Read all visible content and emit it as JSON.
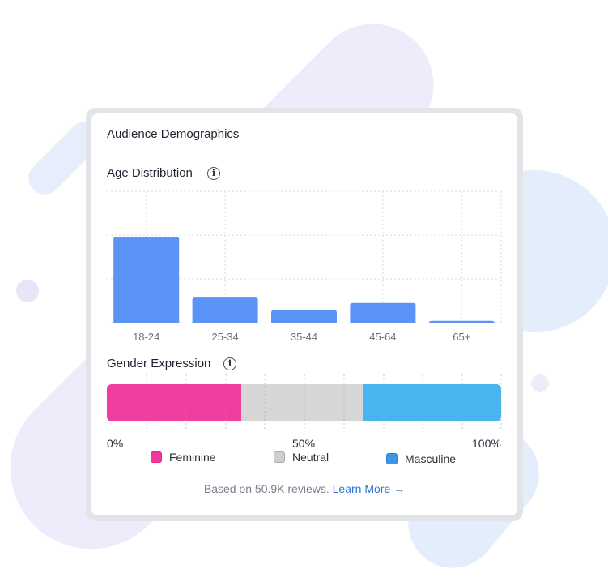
{
  "card": {
    "title": "Audience Demographics"
  },
  "age": {
    "label": "Age Distribution",
    "info_icon": "info-icon"
  },
  "gender": {
    "label": "Gender Expression",
    "info_icon": "info-icon",
    "axis_labels": [
      "0%",
      "50%",
      "100%"
    ],
    "legend": [
      {
        "name": "Feminine",
        "color": "#f0399b",
        "border": "#e62587"
      },
      {
        "name": "Neutral",
        "color": "#cfcfcf",
        "border": "#a9a9a9"
      },
      {
        "name": "Masculine",
        "color": "#3a99e6",
        "border": "#2b7fcf"
      }
    ]
  },
  "footer": {
    "text": "Based on 50.9K reviews.",
    "link": "Learn More →"
  },
  "colors": {
    "age_bar": "#5b93f7",
    "feminine": "#f03ea0",
    "neutral": "#d6d6d6",
    "masculine": "#48b5ef",
    "link": "#2f73d9"
  },
  "chart_data": [
    {
      "type": "bar",
      "title": "Age Distribution",
      "categories": [
        "18-24",
        "25-34",
        "35-44",
        "45-64",
        "65+"
      ],
      "values": [
        48,
        14,
        7,
        11,
        1
      ],
      "ylim": [
        0,
        100
      ],
      "grid": true
    },
    {
      "type": "bar",
      "title": "Gender Expression",
      "stacked": true,
      "orientation": "horizontal",
      "series": [
        {
          "name": "Feminine",
          "values": [
            34
          ]
        },
        {
          "name": "Neutral",
          "values": [
            30.8
          ]
        },
        {
          "name": "Masculine",
          "values": [
            35.2
          ]
        }
      ],
      "xlim": [
        0,
        100
      ],
      "tick_labels": [
        "0%",
        "50%",
        "100%"
      ],
      "grid": true
    }
  ]
}
